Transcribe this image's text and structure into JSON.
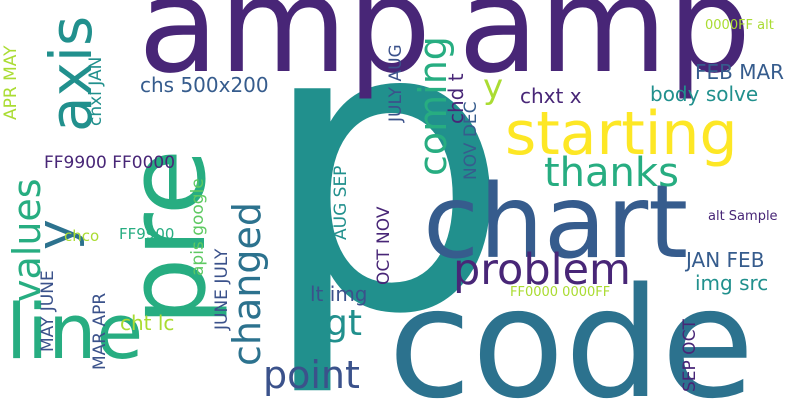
{
  "palette": {
    "indigo": "#482677",
    "purple": "#46337e",
    "slate": "#3b528b",
    "blue": "#365c8d",
    "steel": "#2c728e",
    "teal": "#21908d",
    "green": "#27ad81",
    "lime": "#5ec962",
    "yellowgreen": "#aadc32",
    "yellow": "#fde725"
  },
  "words": [
    {
      "text": "p",
      "color": "teal"
    },
    {
      "text": "amp",
      "color": "indigo"
    },
    {
      "text": "amp",
      "color": "indigo"
    },
    {
      "text": "code",
      "color": "steel"
    },
    {
      "text": "chart",
      "color": "blue"
    },
    {
      "text": "pre",
      "color": "green"
    },
    {
      "text": "line",
      "color": "green"
    },
    {
      "text": "axis",
      "color": "teal"
    },
    {
      "text": "starting",
      "color": "yellow"
    },
    {
      "text": "y",
      "color": "steel"
    },
    {
      "text": "y",
      "color": "yellowgreen"
    },
    {
      "text": "values",
      "color": "green"
    },
    {
      "text": "problem",
      "color": "indigo"
    },
    {
      "text": "thanks",
      "color": "green"
    },
    {
      "text": "changed",
      "color": "steel"
    },
    {
      "text": "coming",
      "color": "green"
    },
    {
      "text": "point",
      "color": "slate"
    },
    {
      "text": "gt",
      "color": "teal"
    },
    {
      "text": "chs 500x200",
      "color": "blue"
    },
    {
      "text": "FEB MAR",
      "color": "blue"
    },
    {
      "text": "chxt x",
      "color": "indigo"
    },
    {
      "text": "body solve",
      "color": "teal"
    },
    {
      "text": "JAN FEB",
      "color": "blue"
    },
    {
      "text": "img src",
      "color": "teal"
    },
    {
      "text": "lt img",
      "color": "slate"
    },
    {
      "text": "cht lc",
      "color": "yellowgreen"
    },
    {
      "text": "FF9900 FF0000",
      "color": "indigo"
    },
    {
      "text": "chco",
      "color": "yellowgreen"
    },
    {
      "text": "FF9900",
      "color": "green"
    },
    {
      "text": "FF0000 0000FF",
      "color": "yellowgreen"
    },
    {
      "text": "0000FF alt",
      "color": "yellowgreen"
    },
    {
      "text": "alt Sample",
      "color": "indigo"
    },
    {
      "text": "chd t",
      "color": "indigo"
    },
    {
      "text": "APR MAY",
      "color": "yellowgreen"
    },
    {
      "text": "chxl JAN",
      "color": "teal"
    },
    {
      "text": "JULY AUG",
      "color": "slate"
    },
    {
      "text": "NOV DEC",
      "color": "blue"
    },
    {
      "text": "AUG SEP",
      "color": "teal"
    },
    {
      "text": "OCT NOV",
      "color": "indigo"
    },
    {
      "text": "apis google",
      "color": "lime"
    },
    {
      "text": "JUNE JULY",
      "color": "slate"
    },
    {
      "text": "MAY JUNE",
      "color": "slate"
    },
    {
      "text": "MAR APR",
      "color": "slate"
    },
    {
      "text": "SEP OCT",
      "color": "indigo"
    }
  ]
}
